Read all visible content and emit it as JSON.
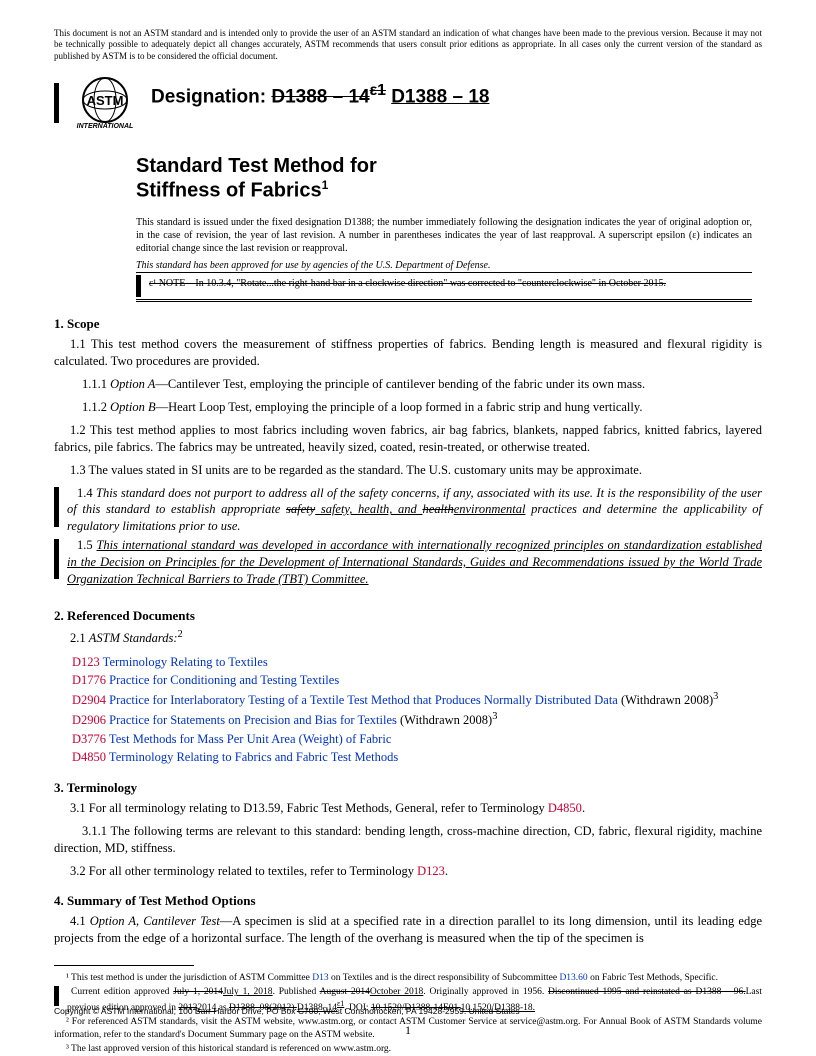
{
  "disclaimer": "This document is not an ASTM standard and is intended only to provide the user of an ASTM standard an indication of what changes have been made to the previous version. Because it may not be technically possible to adequately depict all changes accurately, ASTM recommends that users consult prior editions as appropriate. In all cases only the current version of the standard as published by ASTM is to be considered the official document.",
  "logo_text_top": "ASTM",
  "logo_text_bottom": "INTERNATIONAL",
  "designation_label": "Designation: ",
  "designation_old": "D1388 – 14",
  "designation_old_sup": "ε1",
  "designation_new": "D1388 – 18",
  "title_line1": "Standard Test Method for",
  "title_line2": "Stiffness of Fabrics",
  "title_sup": "1",
  "issuance_note": "This standard is issued under the fixed designation D1388; the number immediately following the designation indicates the year of original adoption or, in the case of revision, the year of last revision. A number in parentheses indicates the year of last reapproval. A superscript epsilon (ε) indicates an editorial change since the last revision or reapproval.",
  "dod_note": "This standard has been approved for use by agencies of the U.S. Department of Defense.",
  "eps_note": "ε¹ NOTE—In 10.3.4, \"Rotate...the right-hand bar in a clockwise direction\" was corrected to \"counterclockwise\" in October 2015.",
  "sec1_h": "1. Scope",
  "p1_1": "1.1 This test method covers the measurement of stiffness properties of fabrics. Bending length is measured and flexural rigidity is calculated. Two procedures are provided.",
  "p1_1_1_a": "1.1.1 ",
  "p1_1_1_b": "Option A",
  "p1_1_1_c": "—Cantilever Test, employing the principle of cantilever bending of the fabric under its own mass.",
  "p1_1_2_a": "1.1.2 ",
  "p1_1_2_b": "Option B",
  "p1_1_2_c": "—Heart Loop Test, employing the principle of a loop formed in a fabric strip and hung vertically.",
  "p1_2": "1.2 This test method applies to most fabrics including woven fabrics, air bag fabrics, blankets, napped fabrics, knitted fabrics, layered fabrics, pile fabrics. The fabrics may be untreated, heavily sized, coated, resin-treated, or otherwise treated.",
  "p1_3": "1.3 The values stated in SI units are to be regarded as the standard. The U.S. customary units may be approximate.",
  "p1_4_a": "1.4 ",
  "p1_4_b": "This standard does not purport to address all of the safety concerns, if any, associated with its use. It is the responsibility of the user of this standard to establish appropriate ",
  "p1_4_strike": "safety",
  "p1_4_ins": " safety, health, and ",
  "p1_4_strike2": "health",
  "p1_4_ins2": "environmental",
  "p1_4_c": " practices and determine the applicability of regulatory limitations prior to use.",
  "p1_5_a": "1.5 ",
  "p1_5_b": "This international standard was developed in accordance with internationally recognized principles on standardization established in the Decision on Principles for the Development of International Standards, Guides and Recommendations issued by the World Trade Organization Technical Barriers to Trade (TBT) Committee.",
  "sec2_h": "2. Referenced Documents",
  "p2_1_a": "2.1 ",
  "p2_1_b": "ASTM Standards:",
  "p2_1_sup": "2",
  "refs": [
    {
      "code": "D123",
      "title": "Terminology Relating to Textiles",
      "suffix": ""
    },
    {
      "code": "D1776",
      "title": "Practice for Conditioning and Testing Textiles",
      "suffix": ""
    },
    {
      "code": "D2904",
      "title": "Practice for Interlaboratory Testing of a Textile Test Method that Produces Normally Distributed Data",
      "suffix": " (Withdrawn 2008)",
      "sup": "3"
    },
    {
      "code": "D2906",
      "title": "Practice for Statements on Precision and Bias for Textiles",
      "suffix": " (Withdrawn 2008)",
      "sup": "3"
    },
    {
      "code": "D3776",
      "title": "Test Methods for Mass Per Unit Area (Weight) of Fabric",
      "suffix": ""
    },
    {
      "code": "D4850",
      "title": "Terminology Relating to Fabrics and Fabric Test Methods",
      "suffix": ""
    }
  ],
  "sec3_h": "3. Terminology",
  "p3_1_a": "3.1 For all terminology relating to D13.59, Fabric Test Methods, General, refer to Terminology ",
  "p3_1_link": "D4850",
  "p3_1_c": ".",
  "p3_1_1": "3.1.1 The following terms are relevant to this standard: bending length, cross-machine direction, CD, fabric, flexural rigidity, machine direction, MD, stiffness.",
  "p3_2_a": "3.2 For all other terminology related to textiles, refer to Terminology ",
  "p3_2_link": "D123",
  "p3_2_c": ".",
  "sec4_h": "4. Summary of Test Method Options",
  "p4_1_a": "4.1 ",
  "p4_1_b": "Option A, Cantilever Test",
  "p4_1_c": "—A specimen is slid at a specified rate in a direction parallel to its long dimension, until its leading edge projects from the edge of a horizontal surface. The length of the overhang is measured when the tip of the specimen is",
  "fn1_a": "¹ This test method is under the jurisdiction of ASTM Committee ",
  "fn1_link1": "D13",
  "fn1_b": " on Textiles and is the direct responsibility of Subcommittee ",
  "fn1_link2": "D13.60",
  "fn1_c": " on Fabric Test Methods, Specific.",
  "fn1_line2_a": "Current edition approved ",
  "fn1_line2_strike1": "July 1, 2014",
  "fn1_line2_ins1": "July 1, 2018",
  "fn1_line2_b": ". Published ",
  "fn1_line2_strike2": "August 2014",
  "fn1_line2_ins2": "October 2018",
  "fn1_line2_c": ". Originally approved in 1956. ",
  "fn1_line2_strike3": "Discontinued 1995 and reinstated as D1388 – 96.",
  "fn1_line2_d": "Last previous edition approved in ",
  "fn1_line2_strike4": "2012",
  "fn1_line2_ins4": "2014",
  "fn1_line2_e": " as ",
  "fn1_line2_strike5": "D1388–08(2012).",
  "fn1_line2_ins5": "D1388–14",
  "fn1_line2_sup": "ε1",
  "fn1_line2_f": ". DOI: ",
  "fn1_line2_strike6": "10.1520/D1388-14E01.",
  "fn1_line2_ins6": "10.1520/D1388-18.",
  "fn2": "² For referenced ASTM standards, visit the ASTM website, www.astm.org, or contact ASTM Customer Service at service@astm.org. For Annual Book of ASTM Standards volume information, refer to the standard's Document Summary page on the ASTM website.",
  "fn3": "³ The last approved version of this historical standard is referenced on www.astm.org.",
  "copyright": "Copyright © ASTM International, 100 Barr Harbor Drive, PO Box C700, West Conshohocken, PA 19428-2959. United States",
  "page_number": "1"
}
